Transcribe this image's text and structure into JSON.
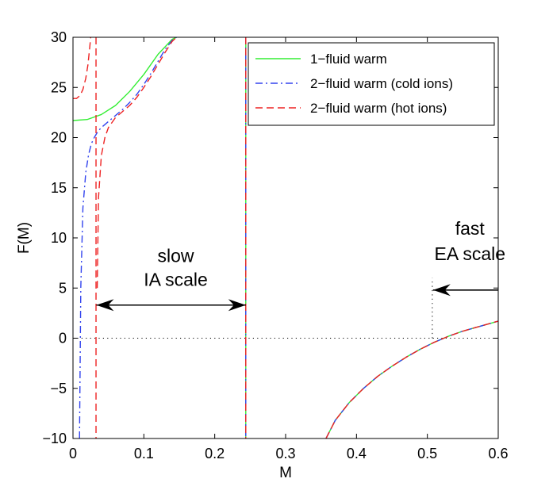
{
  "chart_data": {
    "type": "line",
    "title": "",
    "xlabel": "M",
    "ylabel": "F(M)",
    "xlim": [
      0,
      0.6
    ],
    "ylim": [
      -10,
      30
    ],
    "x_ticks": [
      0,
      0.1,
      0.2,
      0.3,
      0.4,
      0.5,
      0.6
    ],
    "x_tick_labels": [
      "0",
      "0.1",
      "0.2",
      "0.3",
      "0.4",
      "0.5",
      "0.6"
    ],
    "y_ticks": [
      -10,
      -5,
      0,
      5,
      10,
      15,
      20,
      25,
      30
    ],
    "y_tick_labels": [
      "−10",
      "−5",
      "0",
      "5",
      "10",
      "15",
      "20",
      "25",
      "30"
    ],
    "grid": false,
    "legend_position": "top-right",
    "series": [
      {
        "name": "1−fluid warm",
        "color": "#33ee33",
        "dash": "solid",
        "segments": [
          {
            "x": [
              0.0,
              0.02,
              0.04,
              0.06,
              0.08,
              0.1,
              0.12,
              0.14,
              0.146
            ],
            "y": [
              21.7,
              21.8,
              22.3,
              23.2,
              24.6,
              26.3,
              28.3,
              29.8,
              30
            ]
          },
          {
            "x": [
              0.2438,
              0.2438
            ],
            "y": [
              30,
              -10
            ]
          },
          {
            "x": [
              0.357,
              0.37,
              0.39,
              0.41,
              0.43,
              0.45,
              0.47,
              0.49,
              0.51,
              0.53,
              0.55,
              0.57,
              0.59,
              0.6
            ],
            "y": [
              -10,
              -8.2,
              -6.4,
              -5.0,
              -3.8,
              -2.8,
              -1.9,
              -1.1,
              -0.4,
              0.2,
              0.7,
              1.1,
              1.5,
              1.7
            ]
          }
        ]
      },
      {
        "name": "2−fluid warm (cold ions)",
        "color": "#3344ee",
        "dash": "dashdot",
        "segments": [
          {
            "x": [
              0.0092,
              0.011,
              0.014,
              0.018,
              0.022,
              0.026,
              0.03,
              0.035,
              0.04,
              0.05,
              0.06,
              0.07,
              0.08,
              0.09,
              0.1,
              0.11,
              0.12,
              0.13,
              0.14,
              0.146
            ],
            "y": [
              -10,
              5,
              13,
              16.5,
              18.3,
              19.4,
              20.0,
              20.6,
              21.0,
              21.6,
              22.2,
              22.8,
              23.5,
              24.3,
              25.3,
              26.4,
              27.6,
              28.8,
              29.7,
              30
            ]
          },
          {
            "x": [
              0.2438,
              0.2438
            ],
            "y": [
              30,
              -10
            ]
          },
          {
            "x": [
              0.357,
              0.37,
              0.39,
              0.41,
              0.43,
              0.45,
              0.47,
              0.49,
              0.51,
              0.53,
              0.55,
              0.57,
              0.59,
              0.6
            ],
            "y": [
              -10,
              -8.2,
              -6.4,
              -5.0,
              -3.8,
              -2.8,
              -1.9,
              -1.1,
              -0.4,
              0.2,
              0.7,
              1.1,
              1.5,
              1.7
            ]
          }
        ]
      },
      {
        "name": "2−fluid warm (hot ions)",
        "color": "#ee2222",
        "dash": "dashed",
        "segments": [
          {
            "x": [
              0.0,
              0.005,
              0.01,
              0.014,
              0.018,
              0.021,
              0.0235,
              0.025
            ],
            "y": [
              23.9,
              23.9,
              24.2,
              24.8,
              25.9,
              27.2,
              28.9,
              30
            ]
          },
          {
            "x": [
              0.0325,
              0.0325
            ],
            "y": [
              30,
              -10
            ]
          },
          {
            "x": [
              0.0342,
              0.036,
              0.04,
              0.045,
              0.05,
              0.06,
              0.07,
              0.08,
              0.09,
              0.1,
              0.11,
              0.12,
              0.13,
              0.14,
              0.146
            ],
            "y": [
              5,
              14,
              18.2,
              20.0,
              21.0,
              22.0,
              22.6,
              23.2,
              24.0,
              25.0,
              26.1,
              27.3,
              28.5,
              29.6,
              30
            ]
          },
          {
            "x": [
              0.2438,
              0.2438
            ],
            "y": [
              30,
              -10
            ]
          },
          {
            "x": [
              0.357,
              0.37,
              0.39,
              0.41,
              0.43,
              0.45,
              0.47,
              0.49,
              0.51,
              0.53,
              0.55,
              0.57,
              0.59,
              0.6
            ],
            "y": [
              -10,
              -8.2,
              -6.4,
              -5.0,
              -3.8,
              -2.8,
              -1.9,
              -1.1,
              -0.4,
              0.2,
              0.7,
              1.1,
              1.5,
              1.7
            ]
          }
        ]
      }
    ],
    "reference_lines": [
      {
        "orientation": "horizontal",
        "value": 0,
        "style": "dotted"
      },
      {
        "orientation": "vertical",
        "value": 0.507,
        "from": 0,
        "to": 6,
        "style": "dotted"
      }
    ],
    "annotations": [
      {
        "id": "slow",
        "lines": [
          "slow",
          "IA scale"
        ],
        "x": 0.145,
        "y": [
          7.6,
          5.2
        ]
      },
      {
        "id": "fast",
        "lines": [
          "fast",
          "EA scale"
        ],
        "x": 0.56,
        "y": [
          10.3,
          7.8
        ]
      }
    ],
    "arrows": [
      {
        "id": "slow-arrow",
        "x1": 0.033,
        "x2": 0.2438,
        "y": 3.3,
        "heads": "both"
      },
      {
        "id": "fast-arrow",
        "x1": 0.6,
        "x2": 0.508,
        "y": 4.8,
        "heads": "end"
      }
    ]
  }
}
